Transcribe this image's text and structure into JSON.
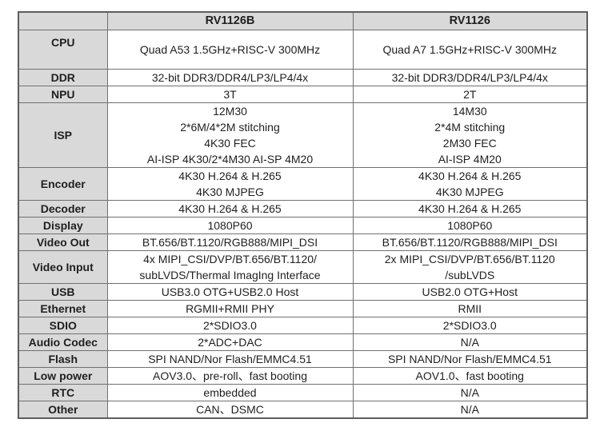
{
  "table": {
    "header": [
      "",
      "RV1126B",
      "RV1126"
    ],
    "rows": [
      {
        "label": "CPU",
        "cells": [
          "Quad A53 1.5GHz+RISC-V 300MHz",
          "Quad A7 1.5GHz+RISC-V 300MHz"
        ]
      },
      {
        "label": "DDR",
        "cells": [
          "32-bit DDR3/DDR4/LP3/LP4/4x",
          "32-bit DDR3/DDR4/LP3/LP4/4x"
        ]
      },
      {
        "label": "NPU",
        "cells": [
          "3T",
          "2T"
        ]
      },
      {
        "label": "ISP",
        "cells": [
          "12M30\n2*6M/4*2M stitching\n4K30 FEC\nAI-ISP 4K30/2*4M30 AI-SP 4M20",
          "14M30\n2*4M stitching\n2M30 FEC\nAI-ISP 4M20"
        ]
      },
      {
        "label": "Encoder",
        "cells": [
          "4K30 H.264 & H.265\n4K30 MJPEG",
          "4K30 H.264 & H.265\n4K30 MJPEG"
        ]
      },
      {
        "label": "Decoder",
        "cells": [
          "4K30 H.264 & H.265",
          "4K30 H.264 & H.265"
        ]
      },
      {
        "label": "Display",
        "cells": [
          "1080P60",
          "1080P60"
        ]
      },
      {
        "label": "Video Out",
        "cells": [
          "BT.656/BT.1120/RGB888/MIPI_DSI",
          "BT.656/BT.1120/RGB888/MIPI_DSI"
        ]
      },
      {
        "label": "Video Input",
        "cells": [
          "4x MIPI_CSI/DVP/BT.656/BT.1120/\nsubLVDS/Thermal ImagIng Interface",
          "2x MIPI_CSI/DVP/BT.656/BT.1120\n/subLVDS"
        ]
      },
      {
        "label": "USB",
        "cells": [
          "USB3.0 OTG+USB2.0 Host",
          "USB2.0 OTG+Host"
        ]
      },
      {
        "label": "Ethernet",
        "cells": [
          "RGMII+RMII PHY",
          "RMII"
        ]
      },
      {
        "label": "SDIO",
        "cells": [
          "2*SDIO3.0",
          "2*SDIO3.0"
        ]
      },
      {
        "label": "Audio Codec",
        "cells": [
          "2*ADC+DAC",
          "N/A"
        ]
      },
      {
        "label": "Flash",
        "cells": [
          "SPI NAND/Nor Flash/EMMC4.51",
          "SPI NAND/Nor Flash/EMMC4.51"
        ]
      },
      {
        "label": "Low power",
        "cells": [
          "AOV3.0、pre-roll、fast booting",
          "AOV1.0、fast booting"
        ]
      },
      {
        "label": "RTC",
        "cells": [
          "embedded",
          "N/A"
        ]
      },
      {
        "label": "Other",
        "cells": [
          "CAN、DSMC",
          "N/A"
        ]
      }
    ]
  },
  "colors": {
    "header_bg": "#d9d9d9",
    "border": "#707070",
    "text": "#1f1f1f",
    "page_bg": "#ffffff"
  }
}
